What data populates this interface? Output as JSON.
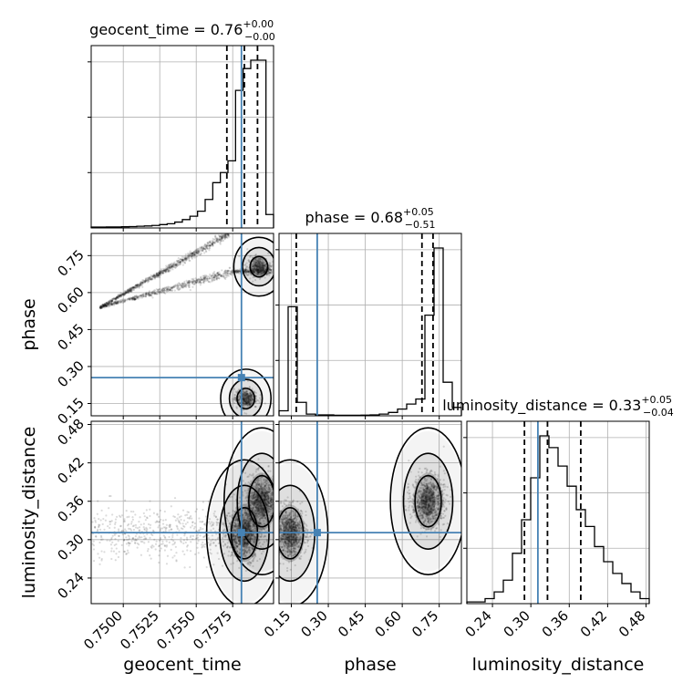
{
  "chart_data": {
    "type": "corner",
    "parameters": [
      {
        "key": "geocent_time",
        "label": "geocent_time",
        "range": [
          0.7478,
          0.7603
        ],
        "ticks": [
          0.75,
          0.7525,
          0.755,
          0.7575
        ],
        "tick_labels": [
          "0.7500",
          "0.7525",
          "0.7550",
          "0.7575"
        ],
        "truth": 0.7581,
        "title": {
          "name": "geocent_time",
          "median": "0.76",
          "plus": "+0.00",
          "minus": "−0.00"
        },
        "quantiles": [
          0.7571,
          0.7583,
          0.7592
        ]
      },
      {
        "key": "phase",
        "label": "phase",
        "range": [
          0.1,
          0.84
        ],
        "ticks": [
          0.15,
          0.3,
          0.45,
          0.6,
          0.75
        ],
        "tick_labels": [
          "0.15",
          "0.30",
          "0.45",
          "0.60",
          "0.75"
        ],
        "truth": 0.255,
        "title": {
          "name": "phase",
          "median": "0.68",
          "plus": "+0.05",
          "minus": "−0.51"
        },
        "quantiles": [
          0.17,
          0.68,
          0.725
        ]
      },
      {
        "key": "luminosity_distance",
        "label": "luminosity_distance",
        "range": [
          0.2,
          0.485
        ],
        "ticks": [
          0.24,
          0.3,
          0.36,
          0.42,
          0.48
        ],
        "tick_labels": [
          "0.24",
          "0.30",
          "0.36",
          "0.42",
          "0.48"
        ],
        "truth": 0.311,
        "title": {
          "name": "luminosity_distance",
          "median": "0.33",
          "plus": "+0.05",
          "minus": "−0.04"
        },
        "quantiles": [
          0.29,
          0.326,
          0.378
        ]
      }
    ],
    "histograms": {
      "geocent_time": {
        "bins": [
          0.7478,
          0.7603
        ],
        "counts": [
          0.5,
          0.5,
          0.6,
          0.6,
          0.7,
          0.8,
          1,
          1.2,
          1.5,
          2,
          2.5,
          3.5,
          5,
          7,
          10,
          17,
          27,
          33,
          40,
          82,
          95,
          100,
          100,
          8
        ]
      },
      "phase": {
        "bins": [
          0.1,
          0.84
        ],
        "counts": [
          3,
          65,
          8,
          1,
          0.5,
          0.5,
          0.3,
          0.3,
          0.3,
          0.4,
          0.5,
          1,
          2,
          4,
          7,
          10,
          60,
          100,
          20,
          5
        ]
      },
      "luminosity_distance": {
        "bins": [
          0.2,
          0.485
        ],
        "counts": [
          1,
          1,
          3,
          7,
          14,
          30,
          50,
          75,
          100,
          93,
          82,
          70,
          56,
          46,
          34,
          25,
          18,
          12,
          7,
          3
        ]
      }
    },
    "scatter": {
      "phase_vs_geocent_time": {
        "x_param": "geocent_time",
        "y_param": "phase",
        "mode": "v-shape",
        "branch_upper": [
          [
            0.7484,
            0.54
          ],
          [
            0.7575,
            0.685
          ],
          [
            0.7602,
            0.685
          ]
        ],
        "branch_lower": [
          [
            0.7484,
            0.54
          ],
          [
            0.7573,
            0.84
          ]
        ],
        "blob_upper": [
          0.7593,
          0.705
        ],
        "blob_lower": [
          0.7584,
          0.17
        ]
      },
      "luminosity_distance_vs_geocent_time": {
        "x_param": "geocent_time",
        "y_param": "luminosity_distance",
        "clusters": [
          [
            0.7595,
            0.36
          ],
          [
            0.7583,
            0.31
          ]
        ]
      },
      "luminosity_distance_vs_phase": {
        "x_param": "phase",
        "y_param": "luminosity_distance",
        "clusters": [
          [
            0.145,
            0.31
          ],
          [
            0.705,
            0.36
          ]
        ]
      }
    },
    "grid": true
  }
}
